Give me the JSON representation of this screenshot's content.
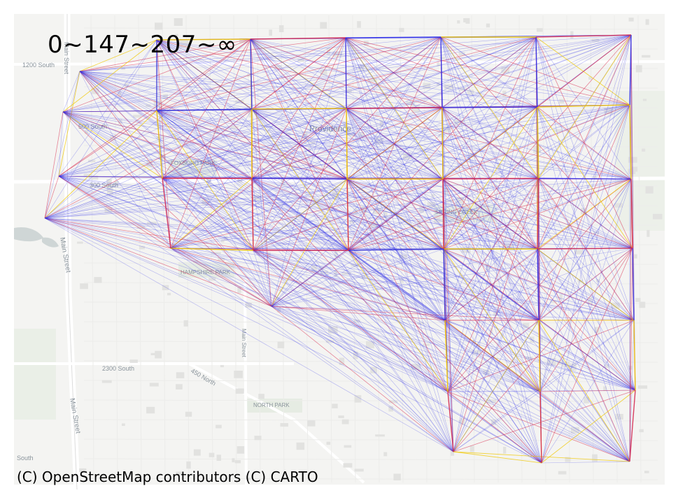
{
  "legend_title": "0~147~207~∞",
  "attribution": "(C) OpenStreetMap contributors (C) CARTO",
  "colors": {
    "background": "#f4f4f2",
    "low": "#3030e8",
    "mid": "#d8264a",
    "high": "#f0c800",
    "water": "#cfd6d6",
    "park": "#e6ece3",
    "road": "#ffffff"
  },
  "map_labels": {
    "street_1200s": "1200 South",
    "street_main": "Main Street",
    "street_main2": "Main Street",
    "street_500s": "500 South",
    "street_300s": "300 South",
    "city": "Providence",
    "park_a": "FOXBORO PARK",
    "park_b": "HAMPSHIRE PARK",
    "park_c": "SPRING CREEK",
    "park_d": "NORTH PARK",
    "street_2300s": "2300 South",
    "street_450n": "450 North",
    "street_main3": "Main Street",
    "south": "South"
  }
}
